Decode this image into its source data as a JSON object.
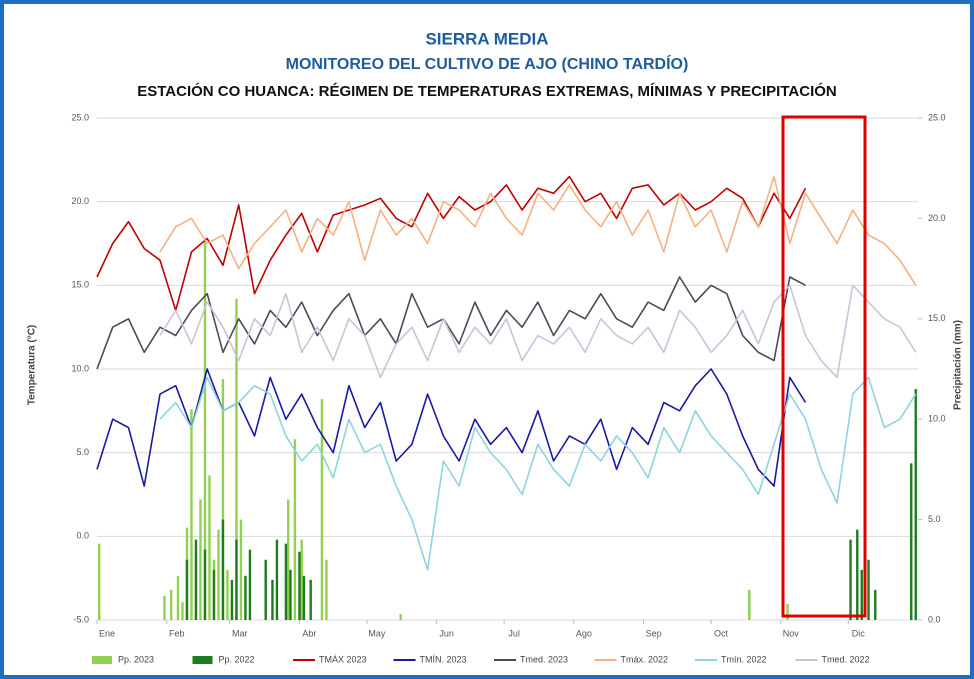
{
  "chart_data": {
    "type": "combo",
    "titles": [
      "SIERRA MEDIA",
      "MONITOREO DEL CULTIVO DE AJO (CHINO TARDÍO)",
      "ESTACIÓN CO HUANCA: RÉGIMEN DE TEMPERATURAS EXTREMAS, MÍNIMAS Y PRECIPITACIÓN"
    ],
    "ylabel": "Temperatura (°C)",
    "y2label": "Precipitación (mm)",
    "grid": true,
    "xlim": [
      0,
      365
    ],
    "xticks": [
      {
        "value": 0,
        "label": "Ene"
      },
      {
        "value": 31,
        "label": "Feb"
      },
      {
        "value": 59,
        "label": "Mar"
      },
      {
        "value": 90,
        "label": "Abr"
      },
      {
        "value": 120,
        "label": "May"
      },
      {
        "value": 151,
        "label": "Jun"
      },
      {
        "value": 181,
        "label": "Jul"
      },
      {
        "value": 212,
        "label": "Ago"
      },
      {
        "value": 243,
        "label": "Sep"
      },
      {
        "value": 273,
        "label": "Oct"
      },
      {
        "value": 304,
        "label": "Nov"
      },
      {
        "value": 334,
        "label": "Dic"
      }
    ],
    "ylim": [
      -5,
      25
    ],
    "yticks": [
      {
        "value": -5,
        "label": "-5.0"
      },
      {
        "value": 0,
        "label": "0.0"
      },
      {
        "value": 5,
        "label": "5.0"
      },
      {
        "value": 10,
        "label": "10.0"
      },
      {
        "value": 15,
        "label": "15.0"
      },
      {
        "value": 20,
        "label": "20.0"
      },
      {
        "value": 25,
        "label": "25.0"
      }
    ],
    "y2lim": [
      0,
      25
    ],
    "y2ticks": [
      {
        "value": 0,
        "label": "0.0"
      },
      {
        "value": 5,
        "label": "5.0"
      },
      {
        "value": 10,
        "label": "10.0"
      },
      {
        "value": 15,
        "label": "15.0"
      },
      {
        "value": 20,
        "label": "20.0"
      },
      {
        "value": 25,
        "label": "25.0"
      }
    ],
    "x": [
      0,
      7,
      14,
      21,
      28,
      35,
      42,
      49,
      56,
      63,
      70,
      77,
      84,
      91,
      98,
      105,
      112,
      119,
      126,
      133,
      140,
      147,
      154,
      161,
      168,
      175,
      182,
      189,
      196,
      203,
      210,
      217,
      224,
      231,
      238,
      245,
      252,
      259,
      266,
      273,
      280,
      287,
      294,
      301,
      308,
      315,
      322,
      329,
      336,
      343,
      350,
      357,
      364
    ],
    "series": [
      {
        "name": "Pp. 2023",
        "type": "bar",
        "axis": "y2",
        "color": "#92d050",
        "x": [
          1,
          30,
          33,
          36,
          38,
          40,
          42,
          44,
          46,
          48,
          50,
          52,
          54,
          56,
          58,
          60,
          62,
          64,
          85,
          88,
          91,
          100,
          102,
          135,
          290,
          307
        ],
        "values": [
          3.8,
          1.2,
          1.5,
          2.2,
          0.9,
          4.6,
          10.5,
          3.4,
          6.0,
          18.9,
          7.2,
          3.0,
          4.5,
          12.0,
          2.5,
          1.0,
          16.0,
          5.0,
          6.0,
          9.0,
          4.0,
          11.0,
          3.0,
          0.3,
          1.5,
          0.8
        ]
      },
      {
        "name": "Pp. 2022",
        "type": "bar",
        "axis": "y2",
        "color": "#1e7b1e",
        "x": [
          40,
          44,
          48,
          52,
          56,
          60,
          62,
          66,
          68,
          75,
          78,
          80,
          84,
          86,
          90,
          92,
          95,
          335,
          338,
          340,
          343,
          346,
          362,
          364
        ],
        "values": [
          3.0,
          4.0,
          3.5,
          2.5,
          5.0,
          2.0,
          4.0,
          2.2,
          3.5,
          3.0,
          2.0,
          4.0,
          3.8,
          2.5,
          3.4,
          2.2,
          2.0,
          4.0,
          4.5,
          2.5,
          3.0,
          1.5,
          7.8,
          11.5
        ]
      },
      {
        "name": "TMÁX 2023",
        "type": "line",
        "color": "#c00000",
        "values": [
          15.5,
          17.5,
          18.8,
          17.2,
          16.5,
          13.5,
          17.0,
          17.8,
          16.2,
          19.8,
          14.5,
          16.5,
          18.0,
          19.3,
          17.0,
          19.2,
          19.5,
          19.8,
          20.2,
          19.0,
          18.5,
          20.5,
          19.0,
          20.3,
          19.5,
          20.0,
          21.0,
          19.5,
          20.8,
          20.5,
          21.5,
          20.0,
          20.5,
          19.0,
          20.8,
          21.0,
          19.8,
          20.5,
          19.5,
          20.0,
          20.8,
          20.2,
          18.5,
          20.5,
          19.0,
          20.8,
          null,
          null,
          null,
          null,
          null,
          null,
          null
        ]
      },
      {
        "name": "TMÍN. 2023",
        "type": "line",
        "color": "#1a1aa0",
        "values": [
          4.0,
          7.0,
          6.5,
          3.0,
          8.5,
          9.0,
          6.5,
          10.0,
          7.5,
          8.0,
          6.0,
          9.5,
          7.0,
          8.5,
          6.5,
          5.0,
          9.0,
          6.5,
          8.0,
          4.5,
          5.5,
          8.5,
          6.0,
          4.5,
          7.0,
          5.5,
          6.5,
          5.0,
          7.5,
          4.5,
          6.0,
          5.5,
          7.0,
          4.0,
          6.5,
          5.5,
          8.0,
          7.5,
          9.0,
          10.0,
          8.5,
          6.0,
          4.0,
          3.0,
          9.5,
          8.0,
          null,
          null,
          null,
          null,
          null,
          null,
          null
        ]
      },
      {
        "name": "Tmed. 2023",
        "type": "line",
        "color": "#4a4a5a",
        "values": [
          10.0,
          12.5,
          13.0,
          11.0,
          12.5,
          12.0,
          13.5,
          14.5,
          11.0,
          13.0,
          11.5,
          13.5,
          12.5,
          14.0,
          12.0,
          13.5,
          14.5,
          12.0,
          13.0,
          11.5,
          14.5,
          12.5,
          13.0,
          11.5,
          14.0,
          12.0,
          13.5,
          12.5,
          14.0,
          12.0,
          13.5,
          13.0,
          14.5,
          13.0,
          12.5,
          14.0,
          13.5,
          15.5,
          14.0,
          15.0,
          14.5,
          12.0,
          11.0,
          10.5,
          15.5,
          15.0,
          null,
          null,
          null,
          null,
          null,
          null,
          null
        ]
      },
      {
        "name": "Tmáx. 2022",
        "type": "line",
        "color": "#f4b183",
        "values": [
          null,
          null,
          null,
          null,
          17.0,
          18.5,
          19.0,
          17.5,
          18.0,
          16.0,
          17.5,
          18.5,
          19.5,
          17.0,
          19.0,
          18.0,
          20.0,
          16.5,
          19.5,
          18.0,
          19.0,
          17.5,
          20.0,
          19.5,
          18.5,
          20.5,
          19.0,
          18.0,
          20.5,
          19.5,
          21.0,
          19.5,
          18.5,
          20.0,
          18.0,
          19.5,
          17.0,
          20.5,
          18.5,
          19.5,
          17.0,
          20.0,
          18.5,
          21.5,
          17.5,
          20.5,
          19.0,
          17.5,
          19.5,
          18.0,
          17.5,
          16.5,
          15.0
        ]
      },
      {
        "name": "Tmín. 2022",
        "type": "line",
        "color": "#8fd3e0",
        "values": [
          null,
          null,
          null,
          null,
          7.0,
          8.0,
          6.5,
          9.5,
          7.5,
          8.0,
          9.0,
          8.5,
          6.0,
          4.5,
          5.5,
          3.5,
          7.0,
          5.0,
          5.5,
          3.0,
          1.0,
          -2.0,
          4.5,
          3.0,
          6.5,
          5.0,
          4.0,
          2.5,
          5.5,
          4.0,
          3.0,
          5.5,
          4.5,
          6.0,
          5.0,
          3.5,
          6.5,
          5.0,
          7.5,
          6.0,
          5.0,
          4.0,
          2.5,
          5.5,
          8.5,
          7.0,
          4.0,
          2.0,
          8.5,
          9.5,
          6.5,
          7.0,
          8.5
        ]
      },
      {
        "name": "Tmed. 2022",
        "type": "line",
        "color": "#c9c3dc",
        "values": [
          null,
          null,
          null,
          null,
          12.0,
          13.5,
          11.5,
          14.0,
          12.5,
          10.5,
          13.0,
          12.0,
          14.5,
          11.0,
          12.5,
          10.5,
          13.0,
          12.0,
          9.5,
          11.5,
          12.5,
          10.5,
          13.0,
          11.0,
          12.5,
          11.5,
          13.0,
          10.5,
          12.0,
          11.5,
          12.5,
          11.0,
          13.0,
          12.0,
          11.5,
          12.5,
          11.0,
          13.5,
          12.5,
          11.0,
          12.0,
          13.5,
          11.5,
          14.0,
          15.0,
          12.0,
          10.5,
          9.5,
          15.0,
          14.0,
          13.0,
          12.5,
          11.0
        ]
      }
    ]
  }
}
